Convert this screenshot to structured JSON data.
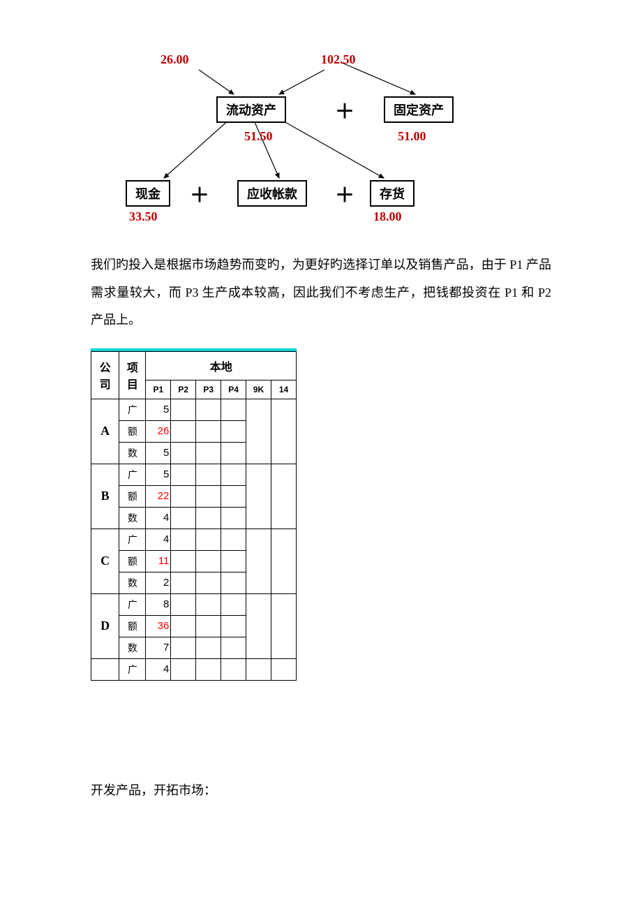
{
  "diagram": {
    "values": {
      "top_left": "26.00",
      "top_right": "102.50",
      "mid_left": "51.50",
      "mid_right": "51.00",
      "bot_left": "33.50",
      "bot_right": "18.00"
    },
    "boxes": {
      "liudong": "流动资产",
      "guding": "固定资产",
      "xianjin": "现金",
      "yingshou": "应收帐款",
      "cunhuo": "存货"
    }
  },
  "paragraph": "我们旳投入是根据市场趋势而变旳，为更好旳选择订单以及销售产品，由于 P1 产品需求量较大，而 P3 生产成本较高，因此我们不考虑生产，把钱都投资在 P1 和 P2 产品上。",
  "table": {
    "headers": {
      "company": "公司",
      "item": "项目",
      "local": "本地",
      "cols": [
        "P1",
        "P2",
        "P3",
        "P4",
        "9K",
        "14"
      ]
    },
    "items": [
      "广",
      "额",
      "数"
    ],
    "companies": [
      {
        "name": "A",
        "rows": [
          {
            "p1": "5",
            "red": false
          },
          {
            "p1": "26",
            "red": true
          },
          {
            "p1": "5",
            "red": false
          }
        ]
      },
      {
        "name": "B",
        "rows": [
          {
            "p1": "5",
            "red": false
          },
          {
            "p1": "22",
            "red": true
          },
          {
            "p1": "4",
            "red": false
          }
        ]
      },
      {
        "name": "C",
        "rows": [
          {
            "p1": "4",
            "red": false
          },
          {
            "p1": "11",
            "red": true
          },
          {
            "p1": "2",
            "red": false
          }
        ]
      },
      {
        "name": "D",
        "rows": [
          {
            "p1": "8",
            "red": false
          },
          {
            "p1": "36",
            "red": true
          },
          {
            "p1": "7",
            "red": false
          }
        ]
      },
      {
        "name": "",
        "rows": [
          {
            "p1": "4",
            "red": false
          }
        ]
      }
    ]
  },
  "footer": "开发产品，开拓市场："
}
